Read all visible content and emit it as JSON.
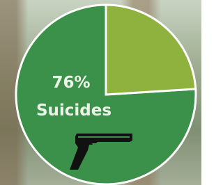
{
  "chart_data": {
    "type": "pie",
    "categories": [
      "Suicides",
      null
    ],
    "values": [
      76,
      24
    ],
    "value_labels": [
      "76%",
      null
    ],
    "colors": [
      "#3b9149",
      "#8fb23e"
    ]
  }
}
